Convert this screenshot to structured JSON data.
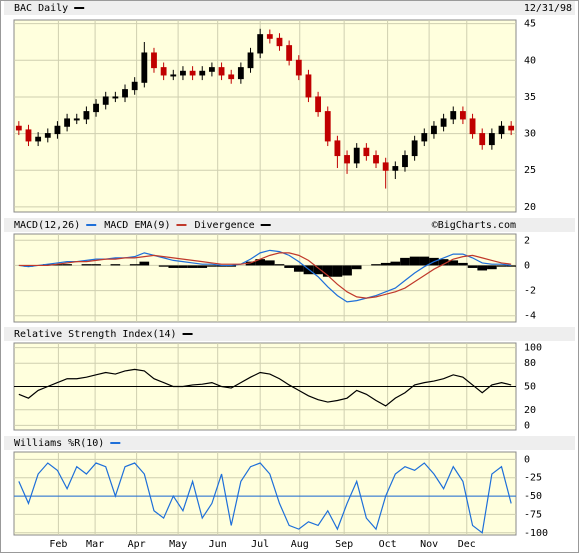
{
  "chart_data": [
    {
      "type": "candlestick",
      "title": "BAC Daily",
      "date": "12/31/98",
      "color": "#000000",
      "up_color": "#000000",
      "down_color": "#c00000",
      "x": [
        0,
        1,
        2,
        3,
        4,
        5,
        6,
        7,
        8,
        9,
        10,
        11,
        12,
        13,
        14,
        15,
        16,
        17,
        18,
        19,
        20,
        21,
        22,
        23,
        24,
        25,
        26,
        27,
        28,
        29,
        30,
        31,
        32,
        33,
        34,
        35,
        36,
        37,
        38,
        39,
        40,
        41,
        42,
        43,
        44,
        45,
        46,
        47,
        48,
        49,
        50,
        51
      ],
      "open": [
        31,
        30.5,
        29,
        29.5,
        30,
        31,
        32,
        32,
        33,
        34,
        35,
        35,
        36,
        37,
        41,
        39,
        38,
        38,
        38.5,
        38,
        38.5,
        39,
        38,
        37.5,
        39,
        41,
        43.5,
        43,
        42,
        40,
        38,
        35,
        33,
        29,
        27,
        26,
        28,
        27,
        26,
        25,
        25.5,
        27,
        29,
        30,
        31,
        32,
        33,
        32,
        30,
        28.5,
        30,
        31
      ],
      "high": [
        31.7,
        31.2,
        30.2,
        30.7,
        31.7,
        32.7,
        32.7,
        33.7,
        34.7,
        35.7,
        35.7,
        36.7,
        37.7,
        42.5,
        41.7,
        39.7,
        38.7,
        39.2,
        39.2,
        39.2,
        39.7,
        39.7,
        38.7,
        39.7,
        41.7,
        44.3,
        44.2,
        43.7,
        42.7,
        40.7,
        38.7,
        35.7,
        33.7,
        29.7,
        27.7,
        28.7,
        28.7,
        27.7,
        26.7,
        26.2,
        27.7,
        29.7,
        30.7,
        31.7,
        32.7,
        33.7,
        33.7,
        32.7,
        30.7,
        30.7,
        31.7,
        31.7
      ],
      "low": [
        29.8,
        28.3,
        28.3,
        28.8,
        29.3,
        30.3,
        31.3,
        31.3,
        32.3,
        33.3,
        34.3,
        34.3,
        35.3,
        36.3,
        38.3,
        37.3,
        37.3,
        37.3,
        37.3,
        37.3,
        37.8,
        37.3,
        36.8,
        36.8,
        38.3,
        40.3,
        42.3,
        41.3,
        39.3,
        37.3,
        34.3,
        32.3,
        28.3,
        25.3,
        24.5,
        25.3,
        26.3,
        25.3,
        22.5,
        23.8,
        24.8,
        26.3,
        28.3,
        29.3,
        30.3,
        31.3,
        31.3,
        29.3,
        27.8,
        27.8,
        29.3,
        29.8
      ],
      "close": [
        30.5,
        29,
        29.5,
        30,
        31,
        32,
        32,
        33,
        34,
        35,
        35,
        36,
        37,
        41,
        39,
        38,
        38,
        38.5,
        38,
        38.5,
        39,
        38,
        37.5,
        39,
        41,
        43.5,
        43,
        42,
        40,
        38,
        35,
        33,
        29,
        27,
        26,
        28,
        27,
        26,
        25,
        25.5,
        27,
        29,
        30,
        31,
        32,
        33,
        32,
        30,
        28.5,
        30,
        31,
        30.5
      ],
      "xlim": [
        -0.5,
        51.5
      ],
      "ylim": [
        19.3,
        45.5
      ],
      "yticks": [
        20,
        25,
        30,
        35,
        40,
        45
      ],
      "grid": true
    },
    {
      "type": "line",
      "credit": "©BigCharts.com",
      "x": [
        0,
        1,
        2,
        3,
        4,
        5,
        6,
        7,
        8,
        9,
        10,
        11,
        12,
        13,
        14,
        15,
        16,
        17,
        18,
        19,
        20,
        21,
        22,
        23,
        24,
        25,
        26,
        27,
        28,
        29,
        30,
        31,
        32,
        33,
        34,
        35,
        36,
        37,
        38,
        39,
        40,
        41,
        42,
        43,
        44,
        45,
        46,
        47,
        48,
        49,
        50,
        51
      ],
      "series": [
        {
          "name": "MACD(12,26)",
          "color": "#1e6fd9",
          "values": [
            0,
            -0.1,
            0,
            0.1,
            0.2,
            0.3,
            0.3,
            0.4,
            0.5,
            0.5,
            0.6,
            0.6,
            0.7,
            1.0,
            0.8,
            0.6,
            0.4,
            0.3,
            0.2,
            0.1,
            0.1,
            0,
            0,
            0.1,
            0.5,
            1.0,
            1.2,
            1.1,
            0.8,
            0.3,
            -0.3,
            -0.9,
            -1.7,
            -2.4,
            -2.9,
            -2.8,
            -2.6,
            -2.4,
            -2.1,
            -1.8,
            -1.2,
            -0.6,
            -0.1,
            0.3,
            0.6,
            0.9,
            0.9,
            0.6,
            0.2,
            0.1,
            0.1,
            0
          ]
        },
        {
          "name": "MACD EMA(9)",
          "color": "#c0392b",
          "values": [
            0,
            0,
            0,
            0,
            0.1,
            0.2,
            0.3,
            0.3,
            0.4,
            0.5,
            0.5,
            0.6,
            0.6,
            0.7,
            0.8,
            0.7,
            0.6,
            0.5,
            0.4,
            0.3,
            0.2,
            0.1,
            0.1,
            0.1,
            0.2,
            0.5,
            0.8,
            1.0,
            1.0,
            0.8,
            0.4,
            -0.2,
            -0.8,
            -1.5,
            -2.1,
            -2.5,
            -2.6,
            -2.5,
            -2.3,
            -2.1,
            -1.8,
            -1.3,
            -0.8,
            -0.3,
            0.1,
            0.5,
            0.7,
            0.8,
            0.6,
            0.4,
            0.2,
            0.1
          ]
        },
        {
          "name": "Divergence",
          "color": "#000000",
          "type": "bar",
          "values": [
            0,
            -0.1,
            0,
            0.1,
            0.1,
            0.1,
            0,
            0.1,
            0.1,
            0,
            0.1,
            0,
            0.1,
            0.3,
            0,
            -0.1,
            -0.2,
            -0.2,
            -0.2,
            -0.2,
            -0.1,
            -0.1,
            -0.1,
            0,
            0.3,
            0.5,
            0.4,
            0.1,
            -0.2,
            -0.5,
            -0.7,
            -0.7,
            -0.9,
            -0.9,
            -0.8,
            -0.3,
            0,
            0.1,
            0.2,
            0.3,
            0.6,
            0.7,
            0.7,
            0.6,
            0.5,
            0.4,
            0.2,
            -0.2,
            -0.4,
            -0.3,
            -0.1,
            -0.1
          ]
        }
      ],
      "xlim": [
        -0.5,
        51.5
      ],
      "ylim": [
        -4.5,
        2.5
      ],
      "yticks": [
        2,
        0,
        -2,
        -4
      ],
      "grid": true
    },
    {
      "type": "line",
      "title": "Relative Strength Index(14)",
      "color": "#000000",
      "x": [
        0,
        1,
        2,
        3,
        4,
        5,
        6,
        7,
        8,
        9,
        10,
        11,
        12,
        13,
        14,
        15,
        16,
        17,
        18,
        19,
        20,
        21,
        22,
        23,
        24,
        25,
        26,
        27,
        28,
        29,
        30,
        31,
        32,
        33,
        34,
        35,
        36,
        37,
        38,
        39,
        40,
        41,
        42,
        43,
        44,
        45,
        46,
        47,
        48,
        49,
        50,
        51
      ],
      "values": [
        40,
        35,
        45,
        50,
        55,
        60,
        60,
        62,
        65,
        68,
        66,
        70,
        72,
        70,
        60,
        55,
        50,
        50,
        52,
        53,
        55,
        50,
        48,
        55,
        62,
        68,
        66,
        60,
        52,
        45,
        38,
        33,
        30,
        32,
        35,
        45,
        40,
        32,
        25,
        35,
        42,
        52,
        55,
        57,
        60,
        65,
        62,
        52,
        42,
        52,
        55,
        52
      ],
      "hline": 50,
      "xlim": [
        -0.5,
        51.5
      ],
      "ylim": [
        -6,
        106
      ],
      "yticks": [
        100,
        80,
        50,
        20,
        0
      ],
      "grid": true
    },
    {
      "type": "line",
      "title": "Williams %R(10)",
      "color": "#1e6fd9",
      "x": [
        0,
        1,
        2,
        3,
        4,
        5,
        6,
        7,
        8,
        9,
        10,
        11,
        12,
        13,
        14,
        15,
        16,
        17,
        18,
        19,
        20,
        21,
        22,
        23,
        24,
        25,
        26,
        27,
        28,
        29,
        30,
        31,
        32,
        33,
        34,
        35,
        36,
        37,
        38,
        39,
        40,
        41,
        42,
        43,
        44,
        45,
        46,
        47,
        48,
        49,
        50,
        51
      ],
      "values": [
        -30,
        -60,
        -20,
        -5,
        -15,
        -40,
        -10,
        -20,
        -5,
        -10,
        -50,
        -10,
        -5,
        -20,
        -70,
        -80,
        -50,
        -70,
        -30,
        -80,
        -60,
        -20,
        -90,
        -30,
        -10,
        -5,
        -20,
        -60,
        -90,
        -95,
        -85,
        -90,
        -70,
        -95,
        -60,
        -30,
        -80,
        -95,
        -50,
        -20,
        -10,
        -15,
        -5,
        -20,
        -40,
        -10,
        -30,
        -90,
        -100,
        -20,
        -10,
        -60
      ],
      "hline": -50,
      "xlim": [
        -0.5,
        51.5
      ],
      "ylim": [
        -103,
        10
      ],
      "yticks": [
        0,
        -25,
        -50,
        -75,
        -100
      ],
      "grid": true,
      "xticks": [
        {
          "value": 4.1,
          "label": "Feb"
        },
        {
          "value": 7.9,
          "label": "Mar"
        },
        {
          "value": 12.2,
          "label": "Apr"
        },
        {
          "value": 16.5,
          "label": "May"
        },
        {
          "value": 20.6,
          "label": "Jun"
        },
        {
          "value": 25.0,
          "label": "Jul"
        },
        {
          "value": 29.1,
          "label": "Aug"
        },
        {
          "value": 33.7,
          "label": "Sep"
        },
        {
          "value": 38.2,
          "label": "Oct"
        },
        {
          "value": 42.5,
          "label": "Nov"
        },
        {
          "value": 46.4,
          "label": "Dec"
        }
      ]
    }
  ]
}
